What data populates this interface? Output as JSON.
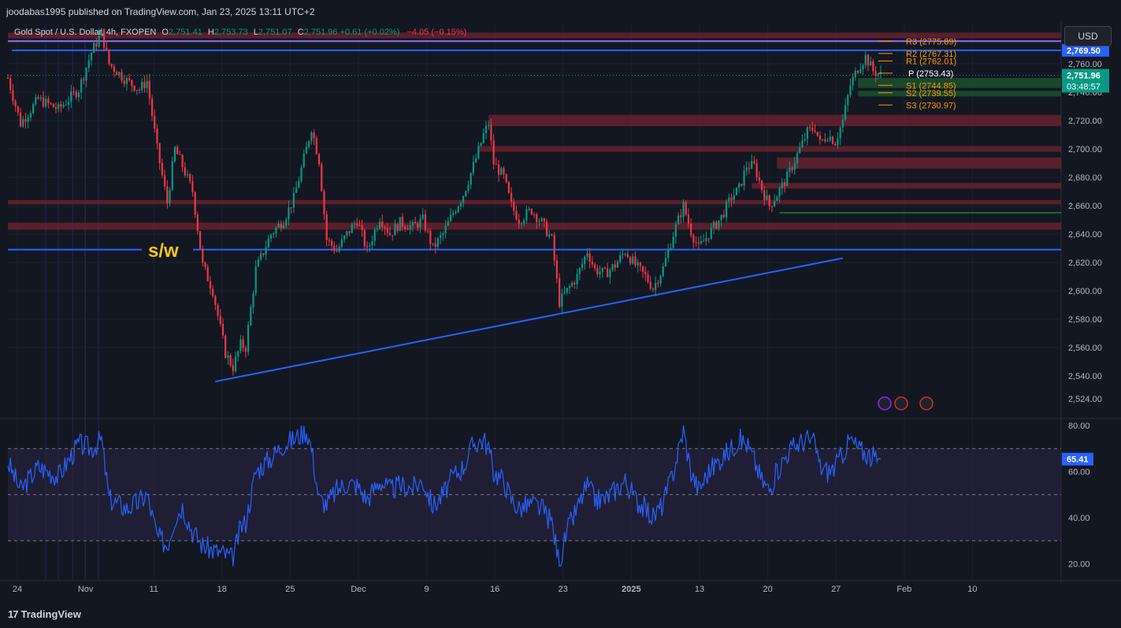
{
  "header": {
    "published": "joodabas1995 published on TradingView.com, Jan 23, 2025 13:11 UTC+2"
  },
  "legend": {
    "symbol": "Gold Spot / U.S. Dollar, 4h, FXOPEN",
    "o_label": "O",
    "o_value": "2,751.41",
    "h_label": "H",
    "h_value": "2,753.73",
    "l_label": "L",
    "l_value": "2,751.07",
    "c_label": "C",
    "c_value": "2,751.96",
    "change": "+0.61 (+0.02%)",
    "change2": "−4.05 (−0.15%)"
  },
  "currency_button": "USD",
  "footer": {
    "brand_mark": "17",
    "brand": "TradingView"
  },
  "colors": {
    "background": "#131722",
    "up": "#089981",
    "down": "#f23645",
    "blue_line": "#2962ff",
    "purple_line": "#9c6bff",
    "zone": "#6b2230",
    "pivot_orange": "#ff9800",
    "rsi_line": "#2962ff",
    "rsi_band": "#2a2545",
    "sw_label": "#f5c518"
  },
  "chart_data": [
    {
      "type": "candlestick",
      "title": "Gold Spot / U.S. Dollar, 4h, FXOPEN",
      "x_tick_labels": [
        "24",
        "Nov",
        "11",
        "18",
        "25",
        "Dec",
        "9",
        "16",
        "23",
        "2025",
        "13",
        "20",
        "27",
        "Feb",
        "10"
      ],
      "y_tick_labels": [
        "2,524.00",
        "2,540.00",
        "2,560.00",
        "2,580.00",
        "2,600.00",
        "2,620.00",
        "2,640.00",
        "2,660.00",
        "2,680.00",
        "2,700.00",
        "2,720.00",
        "2,740.00",
        "2,760.00"
      ],
      "ylim": [
        2517,
        2785
      ],
      "price_path": [
        [
          0,
          2750
        ],
        [
          5,
          2718
        ],
        [
          12,
          2735
        ],
        [
          20,
          2728
        ],
        [
          28,
          2742
        ],
        [
          33,
          2768
        ],
        [
          37,
          2782
        ],
        [
          40,
          2760
        ],
        [
          47,
          2748
        ],
        [
          52,
          2742
        ],
        [
          55,
          2748
        ],
        [
          59,
          2700
        ],
        [
          63,
          2662
        ],
        [
          66,
          2700
        ],
        [
          69,
          2688
        ],
        [
          73,
          2670
        ],
        [
          77,
          2618
        ],
        [
          81,
          2600
        ],
        [
          86,
          2556
        ],
        [
          89,
          2546
        ],
        [
          92,
          2562
        ],
        [
          94,
          2560
        ],
        [
          98,
          2615
        ],
        [
          104,
          2640
        ],
        [
          109,
          2650
        ],
        [
          113,
          2665
        ],
        [
          118,
          2700
        ],
        [
          120,
          2715
        ],
        [
          123,
          2692
        ],
        [
          126,
          2636
        ],
        [
          130,
          2628
        ],
        [
          134,
          2640
        ],
        [
          138,
          2650
        ],
        [
          142,
          2628
        ],
        [
          147,
          2652
        ],
        [
          151,
          2640
        ],
        [
          155,
          2648
        ],
        [
          160,
          2645
        ],
        [
          164,
          2650
        ],
        [
          168,
          2630
        ],
        [
          172,
          2640
        ],
        [
          176,
          2655
        ],
        [
          180,
          2668
        ],
        [
          184,
          2688
        ],
        [
          188,
          2710
        ],
        [
          190,
          2718
        ],
        [
          192,
          2690
        ],
        [
          196,
          2680
        ],
        [
          199,
          2660
        ],
        [
          202,
          2650
        ],
        [
          207,
          2657
        ],
        [
          211,
          2648
        ],
        [
          215,
          2636
        ],
        [
          218,
          2592
        ],
        [
          221,
          2600
        ],
        [
          225,
          2610
        ],
        [
          229,
          2628
        ],
        [
          232,
          2615
        ],
        [
          236,
          2612
        ],
        [
          240,
          2618
        ],
        [
          244,
          2628
        ],
        [
          248,
          2618
        ],
        [
          252,
          2610
        ],
        [
          255,
          2602
        ],
        [
          259,
          2616
        ],
        [
          263,
          2640
        ],
        [
          267,
          2660
        ],
        [
          270,
          2642
        ],
        [
          273,
          2630
        ],
        [
          277,
          2640
        ],
        [
          282,
          2652
        ],
        [
          286,
          2666
        ],
        [
          289,
          2672
        ],
        [
          292,
          2688
        ],
        [
          295,
          2688
        ],
        [
          298,
          2672
        ],
        [
          301,
          2660
        ],
        [
          304,
          2668
        ],
        [
          308,
          2680
        ],
        [
          312,
          2696
        ],
        [
          316,
          2712
        ],
        [
          319,
          2715
        ],
        [
          321,
          2704
        ],
        [
          324,
          2710
        ],
        [
          327,
          2705
        ],
        [
          330,
          2720
        ],
        [
          333,
          2745
        ],
        [
          336,
          2757
        ],
        [
          339,
          2765
        ],
        [
          342,
          2755
        ],
        [
          345,
          2752
        ]
      ],
      "series": [
        {
          "name": "",
          "kind": "rsi",
          "scale": [
            20,
            80
          ],
          "ticks": [
            "20.00",
            "40.00",
            "60.00",
            "80.00"
          ],
          "last_value": "65.41"
        }
      ],
      "rsi_path": [
        [
          0,
          64
        ],
        [
          5,
          52
        ],
        [
          12,
          62
        ],
        [
          20,
          58
        ],
        [
          28,
          72
        ],
        [
          33,
          70
        ],
        [
          37,
          74
        ],
        [
          40,
          48
        ],
        [
          47,
          44
        ],
        [
          52,
          47
        ],
        [
          55,
          50
        ],
        [
          59,
          32
        ],
        [
          63,
          28
        ],
        [
          66,
          40
        ],
        [
          69,
          45
        ],
        [
          73,
          34
        ],
        [
          77,
          28
        ],
        [
          81,
          26
        ],
        [
          86,
          24
        ],
        [
          89,
          22
        ],
        [
          92,
          36
        ],
        [
          94,
          38
        ],
        [
          98,
          60
        ],
        [
          104,
          66
        ],
        [
          109,
          72
        ],
        [
          113,
          74
        ],
        [
          118,
          78
        ],
        [
          120,
          70
        ],
        [
          123,
          48
        ],
        [
          126,
          46
        ],
        [
          130,
          52
        ],
        [
          134,
          55
        ],
        [
          138,
          54
        ],
        [
          142,
          48
        ],
        [
          147,
          56
        ],
        [
          151,
          52
        ],
        [
          155,
          54
        ],
        [
          160,
          53
        ],
        [
          164,
          56
        ],
        [
          168,
          45
        ],
        [
          172,
          50
        ],
        [
          176,
          58
        ],
        [
          180,
          62
        ],
        [
          184,
          72
        ],
        [
          188,
          74
        ],
        [
          190,
          70
        ],
        [
          192,
          60
        ],
        [
          196,
          56
        ],
        [
          199,
          48
        ],
        [
          202,
          44
        ],
        [
          207,
          46
        ],
        [
          211,
          44
        ],
        [
          215,
          38
        ],
        [
          218,
          20
        ],
        [
          221,
          34
        ],
        [
          225,
          44
        ],
        [
          229,
          54
        ],
        [
          232,
          48
        ],
        [
          236,
          48
        ],
        [
          240,
          52
        ],
        [
          244,
          56
        ],
        [
          248,
          48
        ],
        [
          252,
          44
        ],
        [
          255,
          40
        ],
        [
          259,
          46
        ],
        [
          263,
          60
        ],
        [
          267,
          78
        ],
        [
          270,
          60
        ],
        [
          273,
          52
        ],
        [
          277,
          60
        ],
        [
          282,
          66
        ],
        [
          286,
          70
        ],
        [
          289,
          74
        ],
        [
          292,
          72
        ],
        [
          295,
          65
        ],
        [
          298,
          56
        ],
        [
          301,
          52
        ],
        [
          304,
          60
        ],
        [
          308,
          68
        ],
        [
          312,
          72
        ],
        [
          316,
          74
        ],
        [
          319,
          72
        ],
        [
          321,
          62
        ],
        [
          324,
          60
        ],
        [
          327,
          62
        ],
        [
          330,
          68
        ],
        [
          333,
          74
        ],
        [
          336,
          70
        ],
        [
          339,
          68
        ],
        [
          342,
          66
        ],
        [
          345,
          65.41
        ]
      ],
      "horizontal_levels": {
        "s_w_level": 2629,
        "resistance_blue": 2769.5,
        "resistance_purple": 2776
      },
      "zones": [
        {
          "from_x": 0,
          "to_x": 345,
          "low": 2778,
          "high": 2782
        },
        {
          "from_x": 0,
          "to_x": 345,
          "low": 2661,
          "high": 2664
        },
        {
          "from_x": 0,
          "to_x": 345,
          "low": 2643,
          "high": 2648
        },
        {
          "from_x": 190,
          "to_x": 345,
          "low": 2716,
          "high": 2724
        },
        {
          "from_x": 186,
          "to_x": 345,
          "low": 2698,
          "high": 2702
        },
        {
          "from_x": 304,
          "to_x": 345,
          "low": 2686,
          "high": 2694
        },
        {
          "from_x": 294,
          "to_x": 345,
          "low": 2672,
          "high": 2676
        }
      ],
      "demand_zones": [
        {
          "from_x": 336,
          "to_x": 345,
          "low": 2743,
          "high": 2750
        },
        {
          "from_x": 336,
          "to_x": 345,
          "low": 2737,
          "high": 2741
        }
      ],
      "trendline": [
        [
          86,
          2536
        ],
        [
          330,
          2623
        ]
      ],
      "pivots": [
        {
          "label": "R3 (2775.89)",
          "value": 2775.89
        },
        {
          "label": "R2 (2767.31)",
          "value": 2767.31
        },
        {
          "label": "R1 (2762.01)",
          "value": 2762.01
        },
        {
          "label": "P (2753.43)",
          "value": 2753.43
        },
        {
          "label": "S1 (2744.85)",
          "value": 2744.85
        },
        {
          "label": "S2 (2739.55)",
          "value": 2739.55
        },
        {
          "label": "S3 (2730.97)",
          "value": 2730.97
        }
      ],
      "annotations": [
        "s/w"
      ],
      "price_labels": {
        "level": "2,769.50",
        "last": "2,751.96",
        "countdown": "03:48:57"
      }
    }
  ]
}
